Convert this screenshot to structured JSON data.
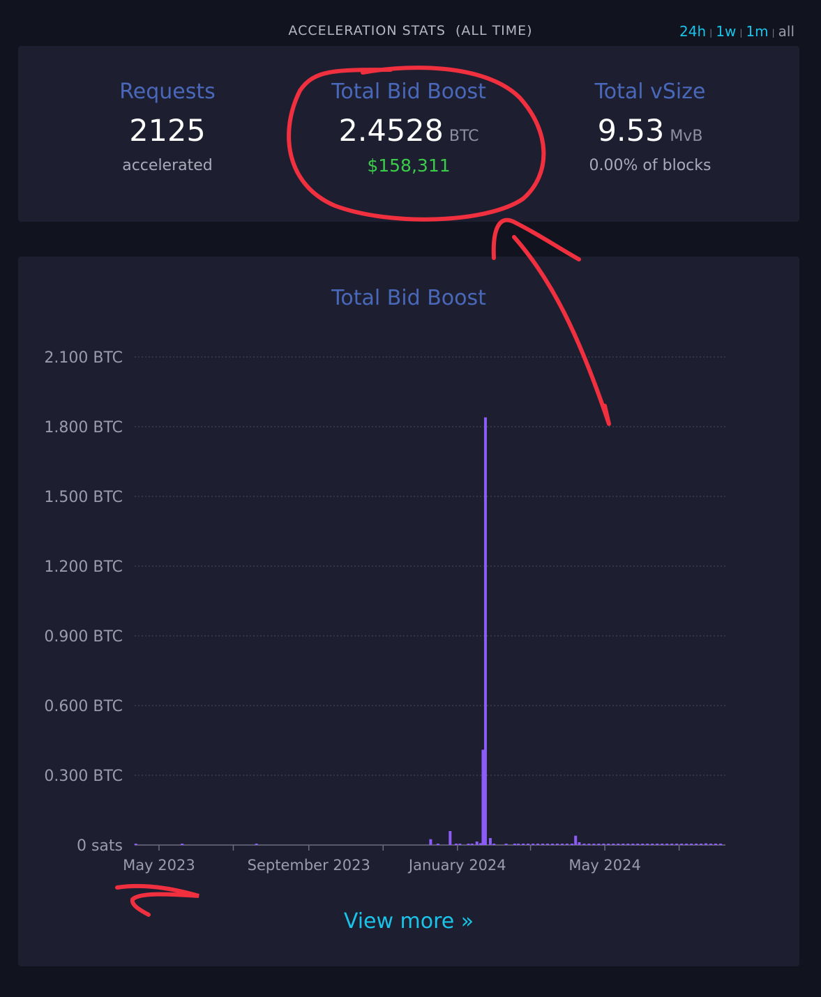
{
  "header": {
    "title": "ACCELERATION STATS",
    "subtitle": "(ALL TIME)",
    "ranges": [
      {
        "label": "24h",
        "active": true
      },
      {
        "label": "1w",
        "active": true
      },
      {
        "label": "1m",
        "active": true
      },
      {
        "label": "all",
        "active": false
      }
    ]
  },
  "stats": {
    "requests": {
      "title": "Requests",
      "value": "2125",
      "sub": "accelerated"
    },
    "bid_boost": {
      "title": "Total Bid Boost",
      "value": "2.4528",
      "unit": "BTC",
      "fiat": "$158,311"
    },
    "vsize": {
      "title": "Total vSize",
      "value": "9.53",
      "unit": "MvB",
      "sub": "0.00% of blocks"
    }
  },
  "chart_title": "Total Bid Boost",
  "view_more": "View more »",
  "colors": {
    "accent": "#1bc3e8",
    "title": "#4a68b9",
    "bar": "#8b5cf6",
    "fiat": "#3bcc49",
    "annotation": "#f0303f"
  },
  "chart_data": {
    "type": "bar",
    "title": "Total Bid Boost",
    "xlabel": "",
    "ylabel": "",
    "y_unit": "BTC",
    "ylim": [
      0,
      2.1
    ],
    "yticks": [
      0,
      0.3,
      0.6,
      0.9,
      1.2,
      1.5,
      1.8,
      2.1
    ],
    "ytick_labels": [
      "0 sats",
      "0.300 BTC",
      "0.600 BTC",
      "0.900 BTC",
      "1.200 BTC",
      "1.500 BTC",
      "1.800 BTC",
      "2.100 BTC"
    ],
    "xlim": [
      "2023-04-11",
      "2024-08-08"
    ],
    "xticks": [
      "2023-05-01",
      "2023-07-01",
      "2023-09-01",
      "2023-11-01",
      "2024-01-01",
      "2024-03-01",
      "2024-05-01",
      "2024-07-01"
    ],
    "xtick_labels": [
      "May 2023",
      "",
      "September 2023",
      "",
      "January 2024",
      "",
      "May 2024",
      ""
    ],
    "grid": true,
    "series": [
      {
        "x": [
          "2023-04-12",
          "2023-05-20",
          "2023-07-20",
          "2023-12-10",
          "2023-12-16",
          "2023-12-26",
          "2023-12-31",
          "2024-01-03",
          "2024-01-10",
          "2024-01-13",
          "2024-01-17",
          "2024-01-20",
          "2024-01-22",
          "2024-01-24",
          "2024-01-28",
          "2024-01-31",
          "2024-02-10",
          "2024-02-17",
          "2024-02-20",
          "2024-02-24",
          "2024-02-28",
          "2024-03-03",
          "2024-03-07",
          "2024-03-11",
          "2024-03-15",
          "2024-03-19",
          "2024-03-23",
          "2024-03-27",
          "2024-03-31",
          "2024-04-04",
          "2024-04-07",
          "2024-04-10",
          "2024-04-14",
          "2024-04-18",
          "2024-04-22",
          "2024-04-26",
          "2024-04-30",
          "2024-05-04",
          "2024-05-08",
          "2024-05-12",
          "2024-05-16",
          "2024-05-20",
          "2024-05-24",
          "2024-05-28",
          "2024-06-01",
          "2024-06-05",
          "2024-06-09",
          "2024-06-13",
          "2024-06-17",
          "2024-06-21",
          "2024-06-25",
          "2024-06-29",
          "2024-07-03",
          "2024-07-07",
          "2024-07-11",
          "2024-07-15",
          "2024-07-19",
          "2024-07-23",
          "2024-07-27",
          "2024-07-31",
          "2024-08-04"
        ],
        "values": [
          0.005,
          0.004,
          0.005,
          0.025,
          0.004,
          0.06,
          0.004,
          0.005,
          0.003,
          0.003,
          0.015,
          0.008,
          0.41,
          1.84,
          0.03,
          0.005,
          0.004,
          0.004,
          0.004,
          0.005,
          0.003,
          0.004,
          0.006,
          0.004,
          0.005,
          0.004,
          0.005,
          0.004,
          0.004,
          0.006,
          0.04,
          0.012,
          0.006,
          0.004,
          0.004,
          0.005,
          0.004,
          0.004,
          0.005,
          0.004,
          0.003,
          0.004,
          0.004,
          0.004,
          0.005,
          0.003,
          0.004,
          0.005,
          0.003,
          0.004,
          0.004,
          0.005,
          0.004,
          0.004,
          0.006,
          0.004,
          0.005,
          0.007,
          0.004,
          0.006,
          0.005
        ]
      }
    ]
  }
}
